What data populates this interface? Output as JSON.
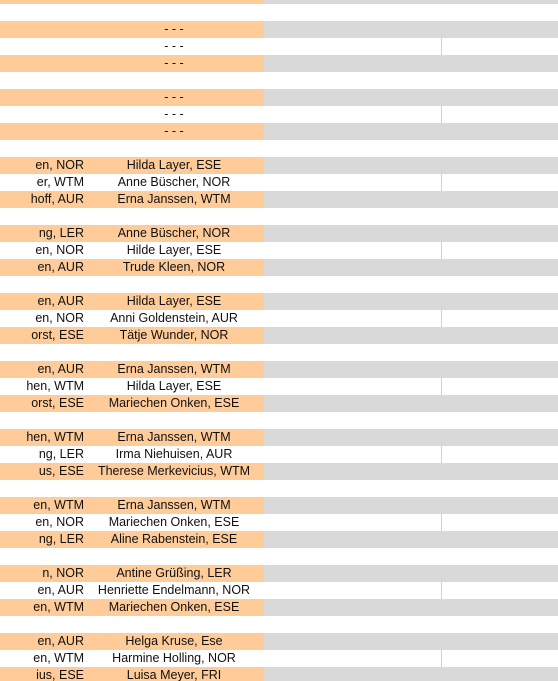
{
  "rows": [
    {
      "type": "orange",
      "a": "",
      "b": ""
    },
    {
      "type": "blank",
      "a": "",
      "b": ""
    },
    {
      "type": "orange",
      "a": "",
      "b": "- - -"
    },
    {
      "type": "white",
      "a": "",
      "b": "- - -"
    },
    {
      "type": "orange",
      "a": "",
      "b": "- - -"
    },
    {
      "type": "blank",
      "a": "",
      "b": ""
    },
    {
      "type": "orange",
      "a": "",
      "b": "- - -"
    },
    {
      "type": "white",
      "a": "",
      "b": "- - -"
    },
    {
      "type": "orange",
      "a": "",
      "b": "- - -"
    },
    {
      "type": "blank",
      "a": "",
      "b": ""
    },
    {
      "type": "orange",
      "a": "en, NOR",
      "b": "Hilda Layer, ESE"
    },
    {
      "type": "white",
      "a": "er, WTM",
      "b": "Anne Büscher, NOR"
    },
    {
      "type": "orange",
      "a": "hoff, AUR",
      "b": "Erna Janssen, WTM"
    },
    {
      "type": "blank",
      "a": "",
      "b": ""
    },
    {
      "type": "orange",
      "a": "ng, LER",
      "b": "Anne Büscher, NOR"
    },
    {
      "type": "white",
      "a": "en, NOR",
      "b": "Hilde Layer, ESE"
    },
    {
      "type": "orange",
      "a": "en, AUR",
      "b": "Trude Kleen, NOR"
    },
    {
      "type": "blank",
      "a": "",
      "b": ""
    },
    {
      "type": "orange",
      "a": "en, AUR",
      "b": "Hilda Layer, ESE"
    },
    {
      "type": "white",
      "a": "en, NOR",
      "b": "Anni Goldenstein, AUR"
    },
    {
      "type": "orange",
      "a": "orst, ESE",
      "b": "Tätje Wunder, NOR"
    },
    {
      "type": "blank",
      "a": "",
      "b": ""
    },
    {
      "type": "orange",
      "a": "en, AUR",
      "b": "Erna Janssen, WTM"
    },
    {
      "type": "white",
      "a": "hen, WTM",
      "b": "Hilda Layer, ESE"
    },
    {
      "type": "orange",
      "a": "orst, ESE",
      "b": "Mariechen Onken, ESE"
    },
    {
      "type": "blank",
      "a": "",
      "b": ""
    },
    {
      "type": "orange",
      "a": "hen, WTM",
      "b": "Erna Janssen, WTM"
    },
    {
      "type": "white",
      "a": "ng, LER",
      "b": "Irma Niehuisen, AUR"
    },
    {
      "type": "orange",
      "a": "us, ESE",
      "b": "Therese Merkevicius, WTM"
    },
    {
      "type": "blank",
      "a": "",
      "b": ""
    },
    {
      "type": "orange",
      "a": "en, WTM",
      "b": "Erna Janssen, WTM"
    },
    {
      "type": "white",
      "a": "en, NOR",
      "b": "Mariechen Onken, ESE"
    },
    {
      "type": "orange",
      "a": "ng, LER",
      "b": "Aline Rabenstein, ESE"
    },
    {
      "type": "blank",
      "a": "",
      "b": ""
    },
    {
      "type": "orange",
      "a": "n, NOR",
      "b": "Antine Grüßing, LER"
    },
    {
      "type": "white",
      "a": "en, AUR",
      "b": "Henriette Endelmann, NOR"
    },
    {
      "type": "orange",
      "a": "en, WTM",
      "b": "Mariechen Onken, ESE"
    },
    {
      "type": "blank",
      "a": "",
      "b": ""
    },
    {
      "type": "orange",
      "a": "en, AUR",
      "b": "Helga Kruse, Ese"
    },
    {
      "type": "white",
      "a": "en, WTM",
      "b": "Harmine Holling, NOR"
    },
    {
      "type": "orange",
      "a": "ius, ESE",
      "b": "Luisa Meyer, FRI"
    }
  ]
}
